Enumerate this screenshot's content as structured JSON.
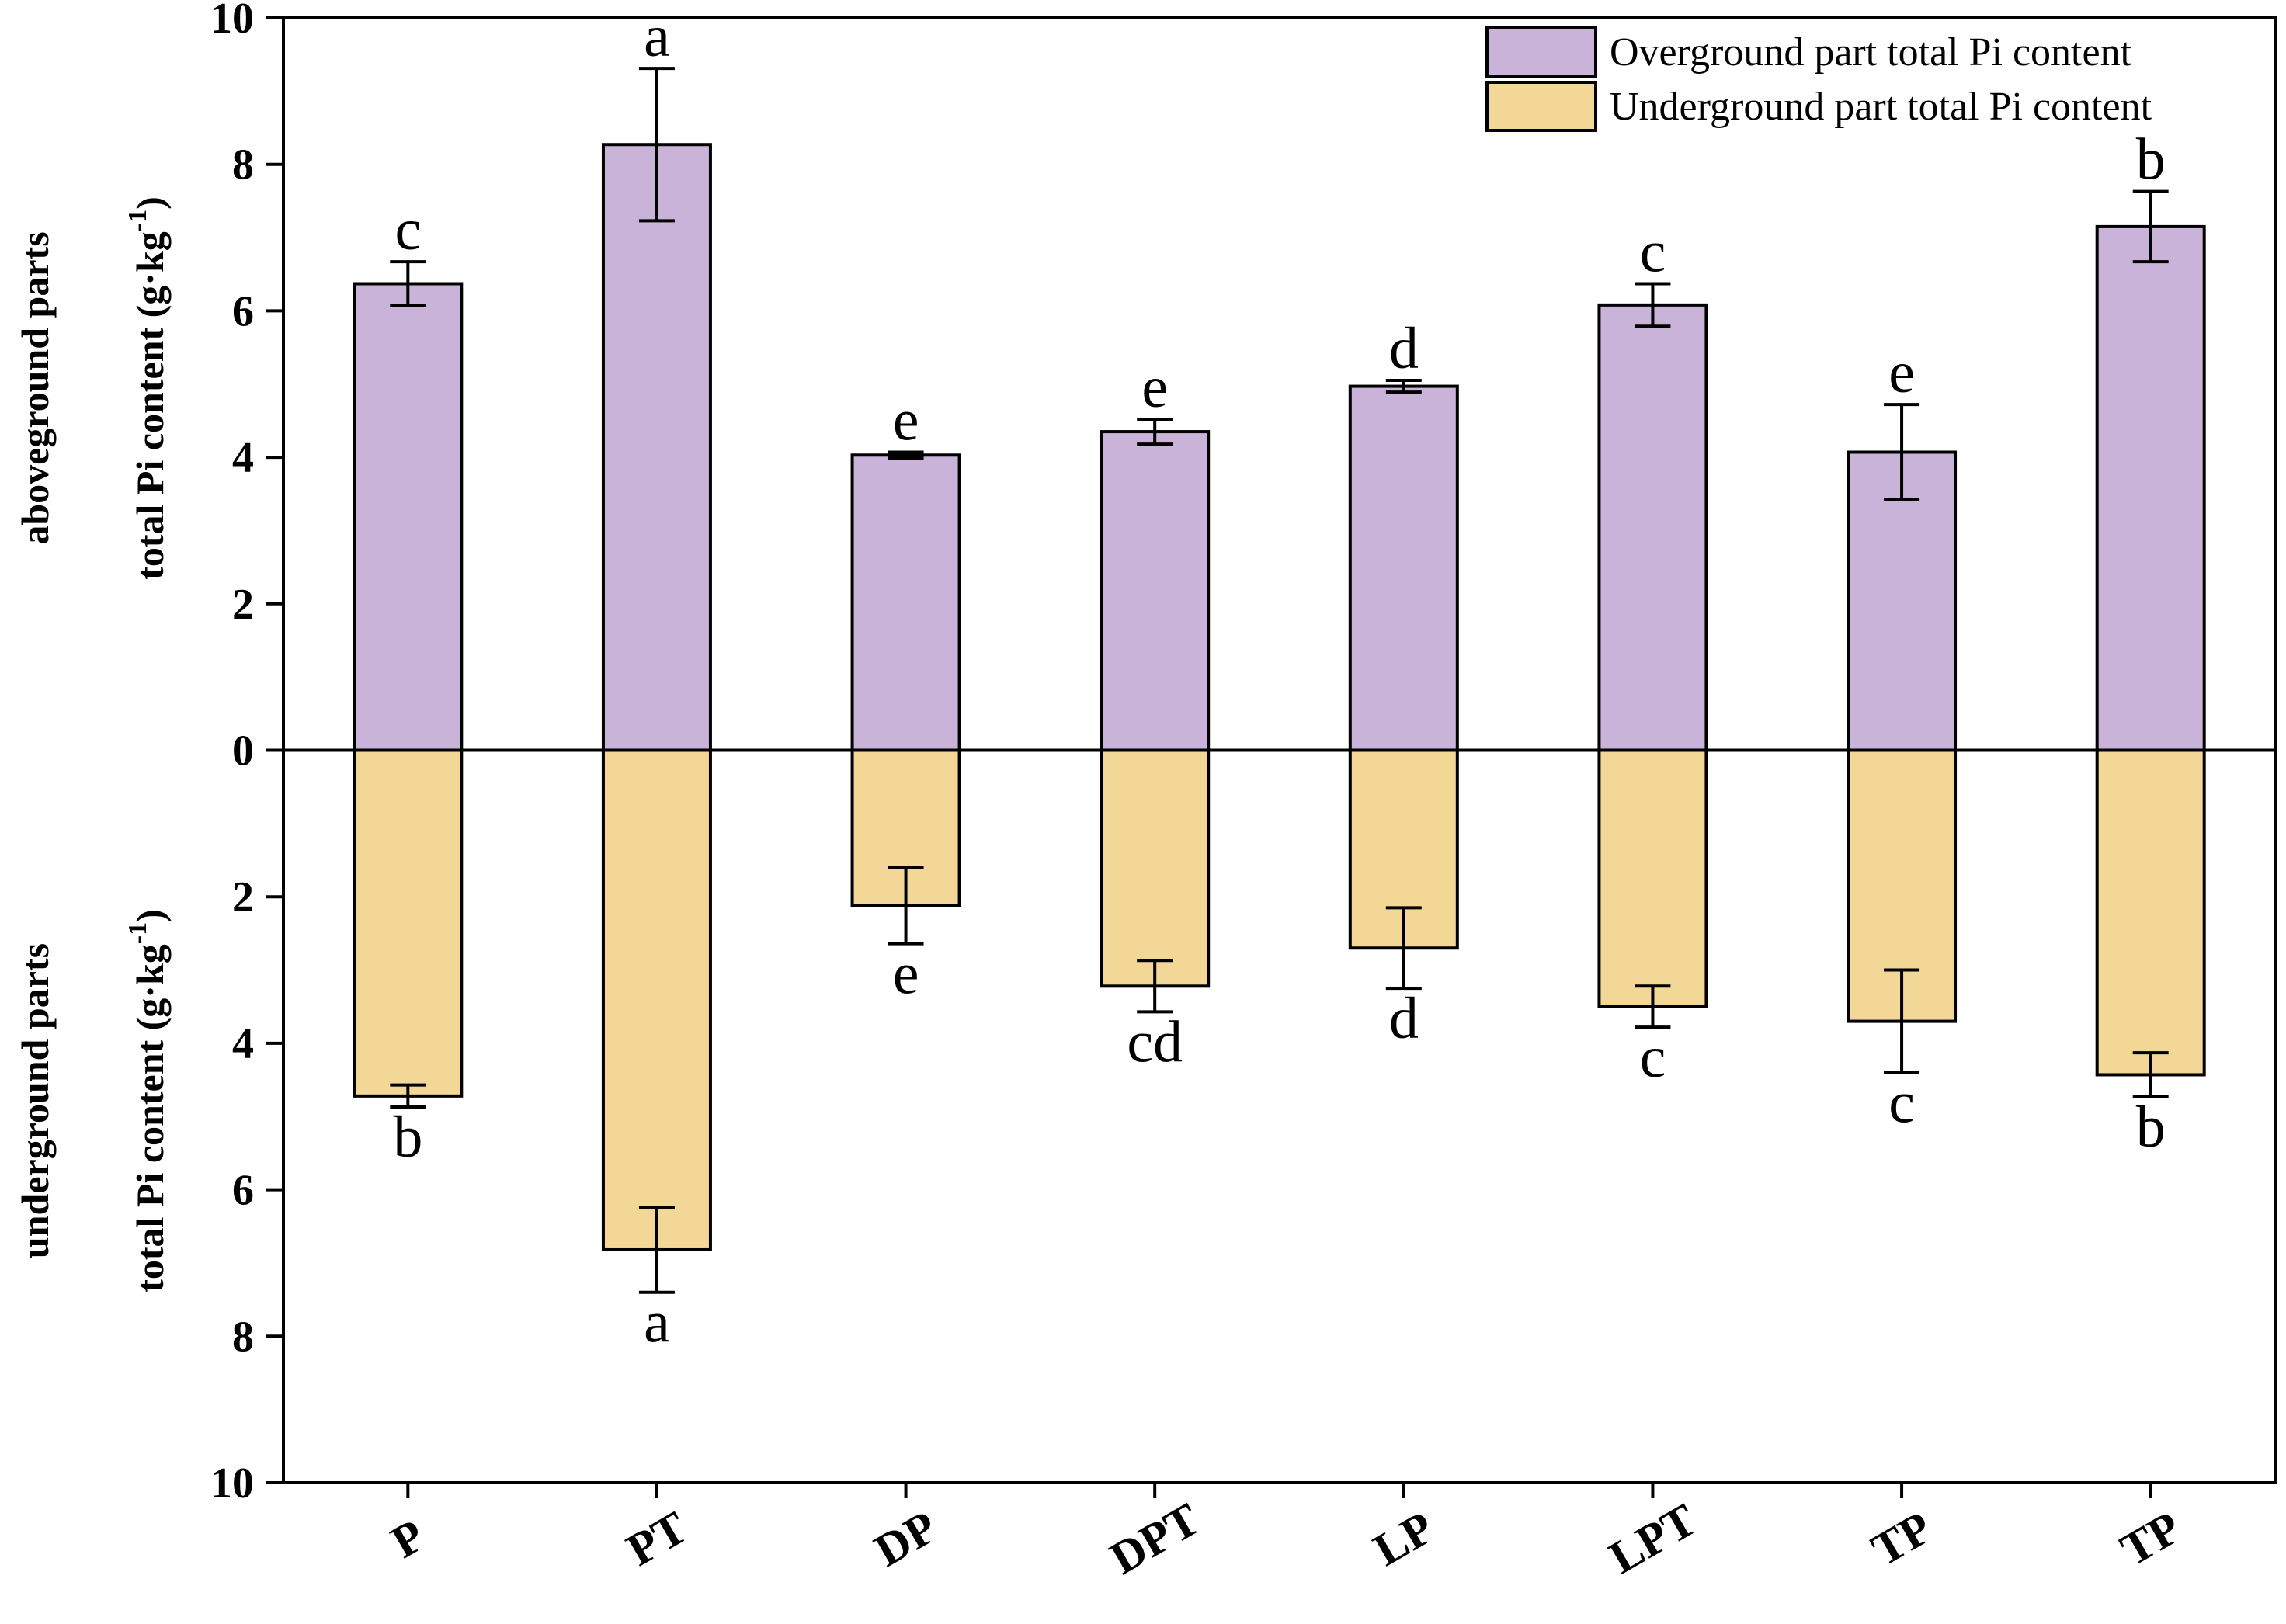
{
  "chart_data": {
    "type": "bar",
    "layout": "mirrored-stacked",
    "categories": [
      "P",
      "PT",
      "DP",
      "DPT",
      "LP",
      "LPT",
      "TP",
      "TP"
    ],
    "series": [
      {
        "name": "Overground part total Pi content",
        "direction": "up",
        "color": "#C9B3D8",
        "values": [
          6.37,
          8.27,
          4.03,
          4.35,
          4.97,
          6.08,
          4.07,
          7.15
        ],
        "errors": [
          0.3,
          1.04,
          0.04,
          0.17,
          0.08,
          0.29,
          0.65,
          0.48
        ],
        "significance": [
          "c",
          "a",
          "e",
          "e",
          "d",
          "c",
          "e",
          "b"
        ]
      },
      {
        "name": "Underground part total Pi content",
        "direction": "down",
        "color": "#F2D797",
        "values": [
          4.72,
          6.82,
          2.12,
          3.22,
          2.7,
          3.5,
          3.7,
          4.43
        ],
        "errors": [
          0.15,
          0.58,
          0.52,
          0.35,
          0.55,
          0.28,
          0.7,
          0.3
        ],
        "significance": [
          "b",
          "a",
          "e",
          "cd",
          "d",
          "c",
          "c",
          "b"
        ]
      }
    ],
    "yaxis": {
      "range": [
        -10,
        10
      ],
      "ticks": [
        10,
        8,
        6,
        4,
        2,
        0,
        2,
        4,
        6,
        8,
        10
      ],
      "tick_values": [
        10,
        8,
        6,
        4,
        2,
        0,
        -2,
        -4,
        -6,
        -8,
        -10
      ]
    },
    "ylabel_upper": [
      "aboveground parts",
      "total Pi content (g·kg",
      "-1",
      ")"
    ],
    "ylabel_lower": [
      "underground parts",
      "total Pi content (g·kg",
      "-1",
      ")"
    ],
    "legend_position": "top-right",
    "grid": false
  }
}
